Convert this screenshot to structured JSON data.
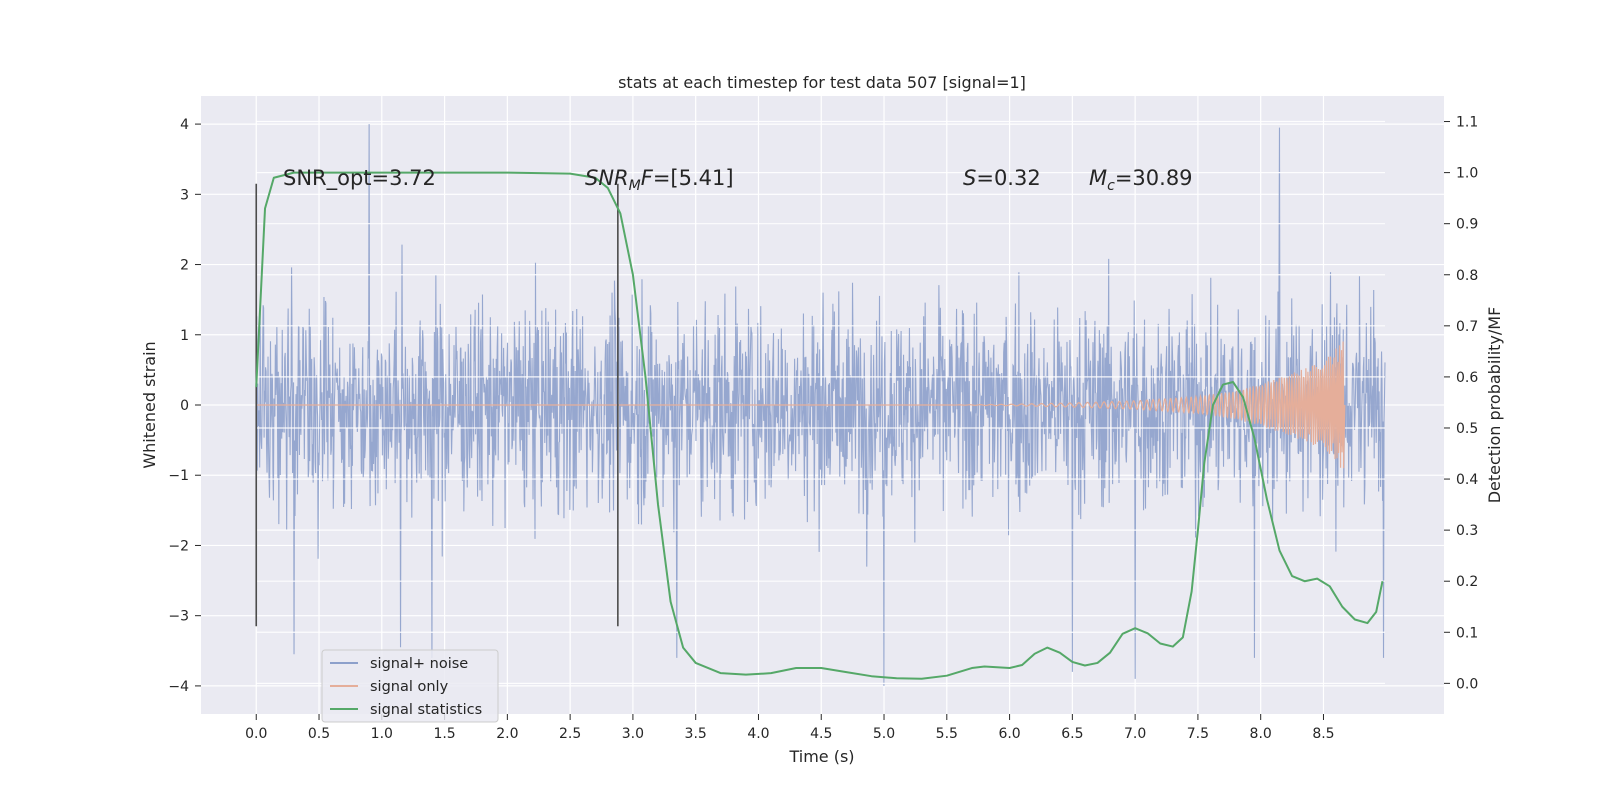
{
  "chart_data": {
    "type": "line",
    "title": "stats at each timestep for test data 507 [signal=1]",
    "xlabel": "Time (s)",
    "ylabel": "Whitened strain",
    "y2label": "Detection probability/MF",
    "xlim": [
      -0.44,
      9.46
    ],
    "ylim": [
      -4.4,
      4.4
    ],
    "y2lim": [
      -0.06,
      1.15
    ],
    "xticks": [
      0.0,
      0.5,
      1.0,
      1.5,
      2.0,
      2.5,
      3.0,
      3.5,
      4.0,
      4.5,
      5.0,
      5.5,
      6.0,
      6.5,
      7.0,
      7.5,
      8.0,
      8.5
    ],
    "xtick_labels": [
      "0.0",
      "0.5",
      "1.0",
      "1.5",
      "2.0",
      "2.5",
      "3.0",
      "3.5",
      "4.0",
      "4.5",
      "5.0",
      "5.5",
      "6.0",
      "6.5",
      "7.0",
      "7.5",
      "8.0",
      "8.5"
    ],
    "yticks": [
      4,
      3,
      2,
      1,
      0,
      -1,
      -2,
      -3,
      -4
    ],
    "ytick_labels": [
      "4",
      "3",
      "2",
      "1",
      "0",
      "−1",
      "−2",
      "−3",
      "−4"
    ],
    "y2ticks": [
      1.1,
      1.0,
      0.9,
      0.8,
      0.7,
      0.6,
      0.5,
      0.4,
      0.3,
      0.2,
      0.1,
      0.0
    ],
    "y2tick_labels": [
      "1.1",
      "1.0",
      "0.9",
      "0.8",
      "0.7",
      "0.6",
      "0.5",
      "0.4",
      "0.3",
      "0.2",
      "0.1",
      "0.0"
    ],
    "grid": true,
    "legend_position": "lower-left",
    "series": [
      {
        "name": "signal+ noise",
        "color": "#8da0cb",
        "axis": "left",
        "x_range": [
          0.0,
          8.99
        ],
        "envelope_typical": 1.3,
        "extremes": [
          [
            0.9,
            4.0
          ],
          [
            8.15,
            3.95
          ],
          [
            0.3,
            -3.55
          ],
          [
            1.15,
            -3.45
          ],
          [
            1.4,
            -3.6
          ],
          [
            3.35,
            -3.6
          ],
          [
            5.0,
            -4.0
          ],
          [
            6.5,
            -3.8
          ],
          [
            7.0,
            -3.9
          ],
          [
            7.95,
            -3.6
          ],
          [
            8.98,
            -3.6
          ]
        ]
      },
      {
        "name": "signal only",
        "color": "#e5ae9a",
        "axis": "left",
        "points": [
          [
            5.5,
            0.0
          ],
          [
            6.0,
            0.01
          ],
          [
            6.5,
            0.03
          ],
          [
            7.0,
            0.06
          ],
          [
            7.5,
            0.12
          ],
          [
            7.8,
            0.2
          ],
          [
            8.0,
            0.3
          ],
          [
            8.2,
            0.42
          ],
          [
            8.4,
            0.55
          ],
          [
            8.55,
            0.7
          ],
          [
            8.62,
            0.85
          ],
          [
            8.65,
            0.95
          ],
          [
            8.66,
            -0.9
          ],
          [
            8.67,
            0.0
          ]
        ]
      },
      {
        "name": "signal statistics",
        "color": "#55a868",
        "axis": "right",
        "points": [
          [
            0.0,
            0.58
          ],
          [
            0.07,
            0.93
          ],
          [
            0.14,
            0.99
          ],
          [
            0.3,
            1.0
          ],
          [
            1.0,
            1.0
          ],
          [
            2.0,
            1.0
          ],
          [
            2.5,
            0.998
          ],
          [
            2.7,
            0.99
          ],
          [
            2.8,
            0.97
          ],
          [
            2.9,
            0.92
          ],
          [
            3.0,
            0.8
          ],
          [
            3.1,
            0.6
          ],
          [
            3.2,
            0.35
          ],
          [
            3.3,
            0.16
          ],
          [
            3.4,
            0.07
          ],
          [
            3.5,
            0.04
          ],
          [
            3.7,
            0.02
          ],
          [
            3.9,
            0.017
          ],
          [
            4.1,
            0.02
          ],
          [
            4.3,
            0.03
          ],
          [
            4.5,
            0.03
          ],
          [
            4.7,
            0.022
          ],
          [
            4.9,
            0.014
          ],
          [
            5.1,
            0.01
          ],
          [
            5.3,
            0.009
          ],
          [
            5.5,
            0.015
          ],
          [
            5.7,
            0.03
          ],
          [
            5.8,
            0.033
          ],
          [
            6.0,
            0.03
          ],
          [
            6.1,
            0.036
          ],
          [
            6.2,
            0.058
          ],
          [
            6.3,
            0.07
          ],
          [
            6.4,
            0.06
          ],
          [
            6.5,
            0.042
          ],
          [
            6.6,
            0.035
          ],
          [
            6.7,
            0.04
          ],
          [
            6.8,
            0.06
          ],
          [
            6.9,
            0.097
          ],
          [
            7.0,
            0.108
          ],
          [
            7.1,
            0.098
          ],
          [
            7.2,
            0.078
          ],
          [
            7.3,
            0.072
          ],
          [
            7.38,
            0.09
          ],
          [
            7.45,
            0.18
          ],
          [
            7.5,
            0.3
          ],
          [
            7.55,
            0.43
          ],
          [
            7.62,
            0.545
          ],
          [
            7.7,
            0.585
          ],
          [
            7.78,
            0.59
          ],
          [
            7.86,
            0.56
          ],
          [
            7.95,
            0.48
          ],
          [
            8.05,
            0.36
          ],
          [
            8.15,
            0.26
          ],
          [
            8.25,
            0.21
          ],
          [
            8.35,
            0.2
          ],
          [
            8.45,
            0.205
          ],
          [
            8.55,
            0.19
          ],
          [
            8.65,
            0.15
          ],
          [
            8.75,
            0.125
          ],
          [
            8.85,
            0.118
          ],
          [
            8.92,
            0.14
          ],
          [
            8.97,
            0.2
          ]
        ]
      }
    ],
    "vlines": [
      {
        "x": 0.0,
        "y": [
          -3.15,
          3.15
        ],
        "color": "#4c4c4c"
      },
      {
        "x": 2.88,
        "y": [
          -3.15,
          3.15
        ],
        "color": "#4c4c4c"
      }
    ],
    "annotations": [
      {
        "text": "SNR_opt=3.72",
        "x": 0.2,
        "y": 3.15
      },
      {
        "text_main": "SNR",
        "text_sub": "M",
        "text_rest": "F=[5.41]",
        "x": 2.6,
        "y": 3.15,
        "italic": true
      },
      {
        "text_main": "S",
        "text_rest": "=0.32",
        "x": 5.62,
        "y": 3.15,
        "italic": true
      },
      {
        "text_main": "M",
        "text_sub": "c",
        "text_rest": "=30.89",
        "x": 6.62,
        "y": 3.15,
        "italic": true
      }
    ]
  },
  "legend": {
    "items": [
      "signal+ noise",
      "signal only",
      "signal statistics"
    ]
  }
}
